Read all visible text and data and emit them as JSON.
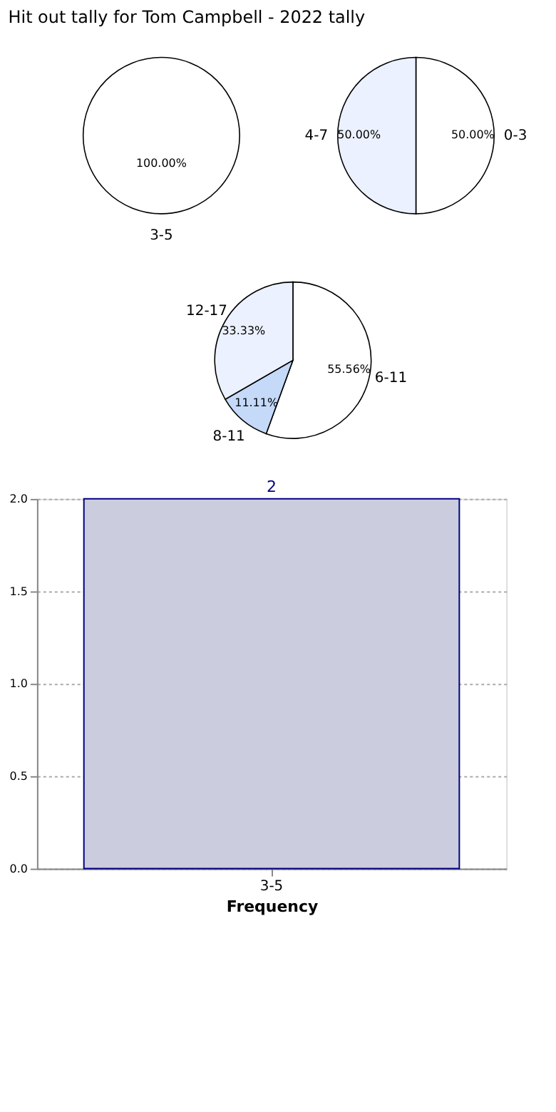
{
  "chart_data": [
    {
      "type": "pie",
      "title": "Hit out tally for Tom Campbell - 2022 tally",
      "categories": [
        "3-5"
      ],
      "values": [
        100
      ],
      "value_labels": [
        "100.00%"
      ],
      "colors": [
        "#ffffff"
      ]
    },
    {
      "type": "pie",
      "categories": [
        "0-3",
        "4-7"
      ],
      "values": [
        50,
        50
      ],
      "value_labels": [
        "50.00%",
        "50.00%"
      ],
      "colors": [
        "#ffffff",
        "#ebf1fe"
      ]
    },
    {
      "type": "pie",
      "categories": [
        "6-11",
        "8-11",
        "12-17"
      ],
      "values": [
        55.56,
        11.11,
        33.33
      ],
      "value_labels": [
        "55.56%",
        "11.11%",
        "33.33%"
      ],
      "colors": [
        "#ffffff",
        "#c5d9f8",
        "#ebf1fe"
      ]
    },
    {
      "type": "bar",
      "categories": [
        "3-5"
      ],
      "values": [
        2
      ],
      "colors": [
        "#ccccdf"
      ],
      "xlabel": "Frequency",
      "ylim": [
        0,
        2
      ],
      "yticks": [
        {
          "value": 0,
          "label": "0.0"
        },
        {
          "value": 0.5,
          "label": "0.5"
        },
        {
          "value": 1,
          "label": "1.0"
        },
        {
          "value": 1.5,
          "label": "1.5"
        },
        {
          "value": 2,
          "label": "2.0"
        }
      ],
      "grid": true,
      "data_labels": true
    }
  ]
}
